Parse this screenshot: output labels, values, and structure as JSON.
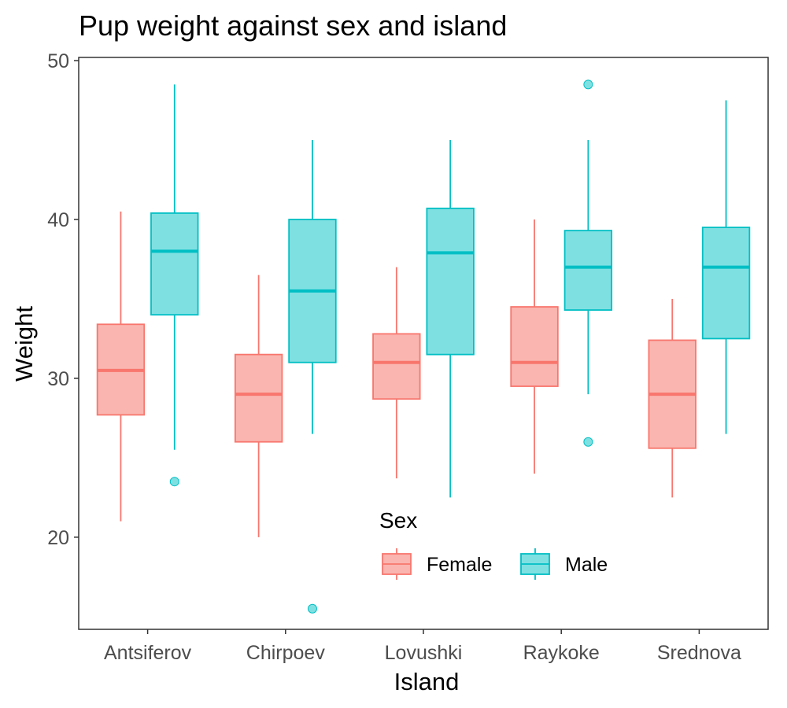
{
  "chart_data": {
    "type": "boxplot",
    "title": "Pup weight against sex and island",
    "xlabel": "Island",
    "ylabel": "Weight",
    "categories": [
      "Antsiferov",
      "Chirpoev",
      "Lovushki",
      "Raykoke",
      "Srednova"
    ],
    "y_ticks": [
      20,
      30,
      40,
      50
    ],
    "ylim": [
      14.2,
      50.2
    ],
    "grid": false,
    "legend": {
      "title": "Sex",
      "placement": "inside-bottom"
    },
    "series": [
      {
        "name": "Female",
        "color": "#F8766D",
        "fill": "#FAB5B0",
        "boxes": [
          {
            "whisker_low": 21.0,
            "q1": 27.7,
            "median": 30.5,
            "q3": 33.4,
            "whisker_high": 40.5,
            "outliers": []
          },
          {
            "whisker_low": 20.0,
            "q1": 26.0,
            "median": 29.0,
            "q3": 31.5,
            "whisker_high": 36.5,
            "outliers": []
          },
          {
            "whisker_low": 23.7,
            "q1": 28.7,
            "median": 31.0,
            "q3": 32.8,
            "whisker_high": 37.0,
            "outliers": []
          },
          {
            "whisker_low": 24.0,
            "q1": 29.5,
            "median": 31.0,
            "q3": 34.5,
            "whisker_high": 40.0,
            "outliers": []
          },
          {
            "whisker_low": 22.5,
            "q1": 25.6,
            "median": 29.0,
            "q3": 32.4,
            "whisker_high": 35.0,
            "outliers": []
          }
        ]
      },
      {
        "name": "Male",
        "color": "#00BFC4",
        "fill": "#7FE0E2",
        "boxes": [
          {
            "whisker_low": 25.5,
            "q1": 34.0,
            "median": 38.0,
            "q3": 40.4,
            "whisker_high": 48.5,
            "outliers": [
              23.5
            ]
          },
          {
            "whisker_low": 26.5,
            "q1": 31.0,
            "median": 35.5,
            "q3": 40.0,
            "whisker_high": 45.0,
            "outliers": [
              15.5
            ]
          },
          {
            "whisker_low": 22.5,
            "q1": 31.5,
            "median": 37.9,
            "q3": 40.7,
            "whisker_high": 45.0,
            "outliers": []
          },
          {
            "whisker_low": 29.0,
            "q1": 34.3,
            "median": 37.0,
            "q3": 39.3,
            "whisker_high": 45.0,
            "outliers": [
              48.5,
              26.0
            ]
          },
          {
            "whisker_low": 26.5,
            "q1": 32.5,
            "median": 37.0,
            "q3": 39.5,
            "whisker_high": 47.5,
            "outliers": []
          }
        ]
      }
    ]
  }
}
